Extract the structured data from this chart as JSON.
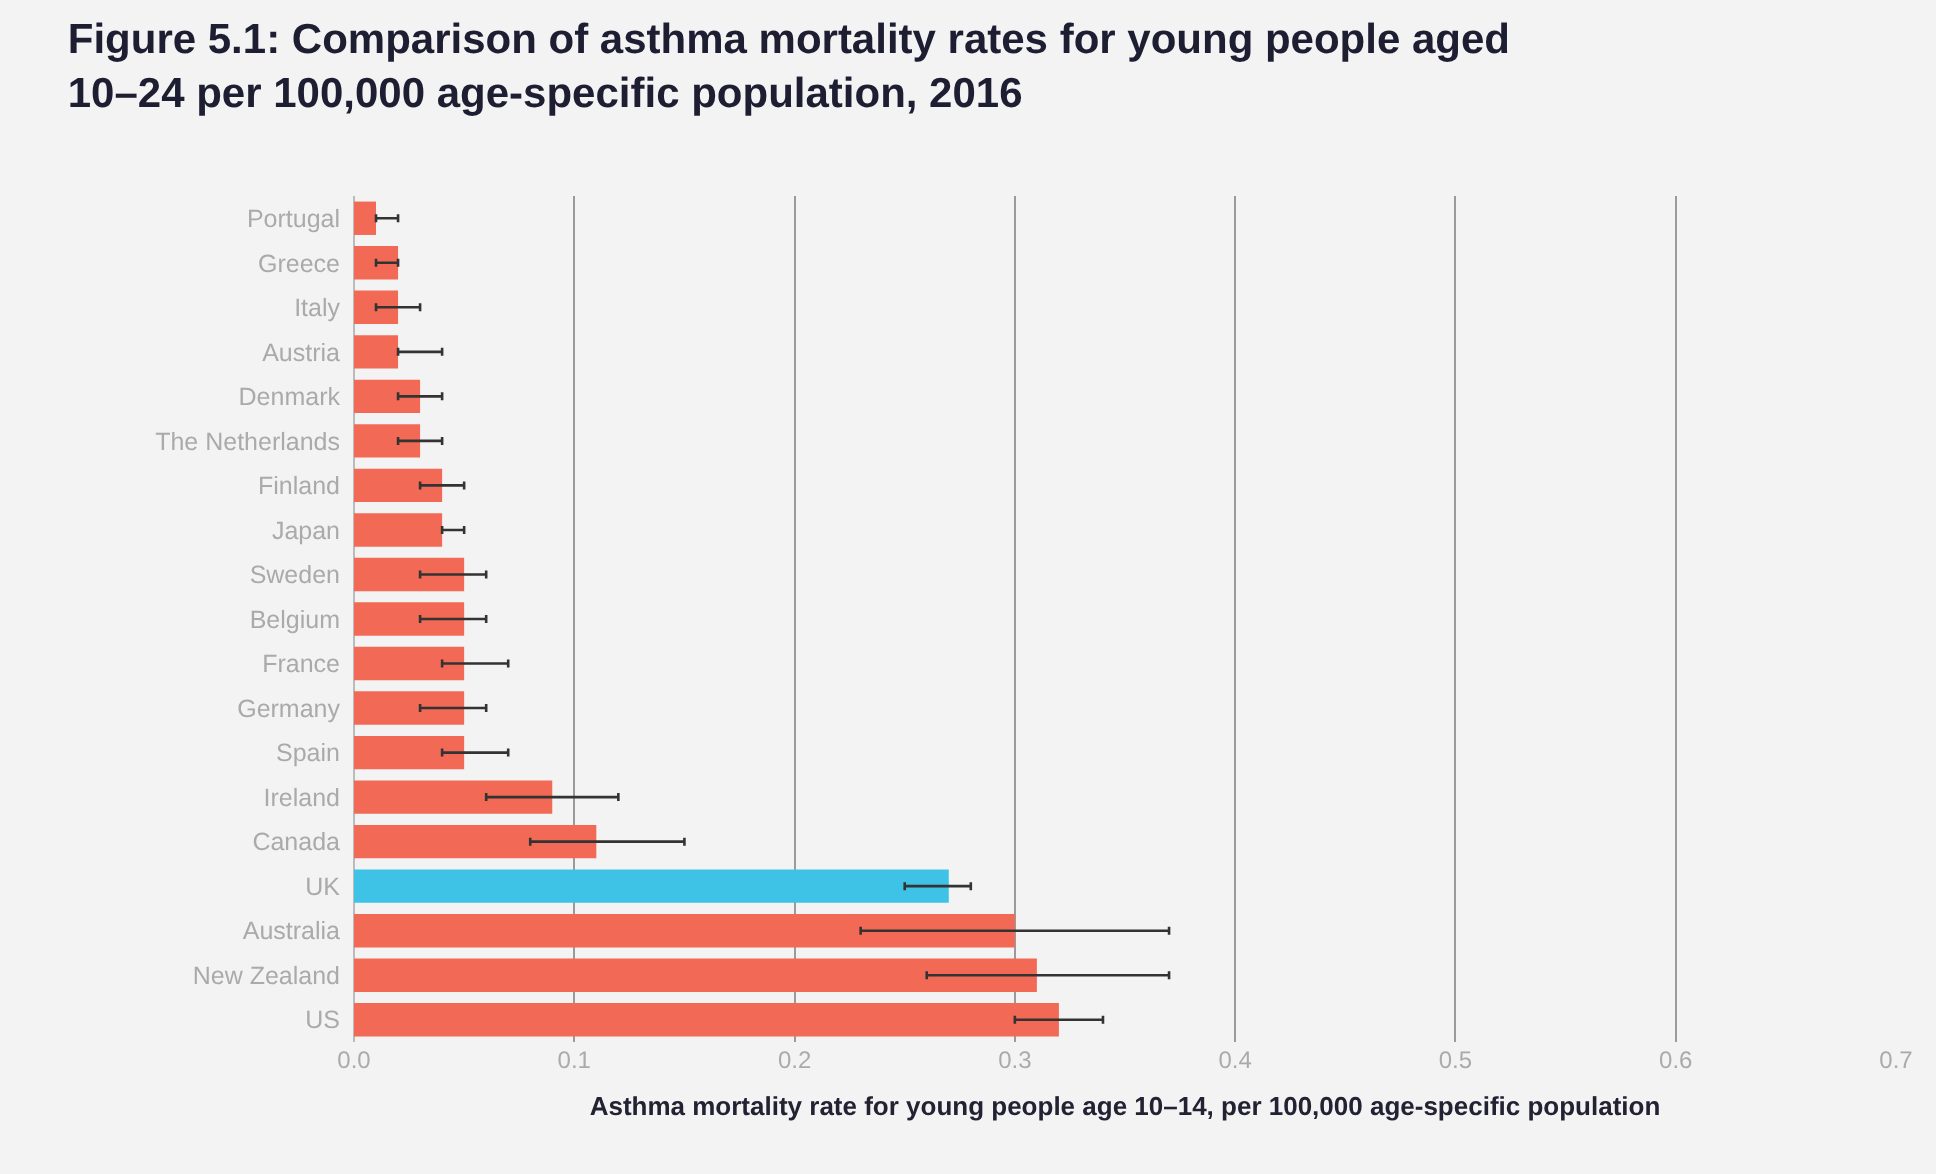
{
  "chart_data": {
    "type": "bar",
    "orientation": "horizontal",
    "title": "Figure 5.1: Comparison of asthma mortality rates for young people aged 10–24 per 100,000 age-specific population, 2016",
    "xlabel": "Asthma mortality rate for young people age 10–14, per 100,000 age-specific population",
    "categories": [
      "Portugal",
      "Greece",
      "Italy",
      "Austria",
      "Denmark",
      "The Netherlands",
      "Finland",
      "Japan",
      "Sweden",
      "Belgium",
      "France",
      "Germany",
      "Spain",
      "Ireland",
      "Canada",
      "UK",
      "Australia",
      "New Zealand",
      "US"
    ],
    "values": [
      0.01,
      0.02,
      0.02,
      0.02,
      0.03,
      0.03,
      0.04,
      0.04,
      0.05,
      0.05,
      0.05,
      0.05,
      0.05,
      0.09,
      0.11,
      0.27,
      0.3,
      0.31,
      0.32
    ],
    "errors": [
      [
        0.01,
        0.02
      ],
      [
        0.01,
        0.02
      ],
      [
        0.01,
        0.03
      ],
      [
        0.02,
        0.04
      ],
      [
        0.02,
        0.04
      ],
      [
        0.02,
        0.04
      ],
      [
        0.03,
        0.05
      ],
      [
        0.04,
        0.05
      ],
      [
        0.03,
        0.06
      ],
      [
        0.03,
        0.06
      ],
      [
        0.04,
        0.07
      ],
      [
        0.03,
        0.06
      ],
      [
        0.04,
        0.07
      ],
      [
        0.06,
        0.12
      ],
      [
        0.08,
        0.15
      ],
      [
        0.25,
        0.28
      ],
      [
        0.23,
        0.37
      ],
      [
        0.26,
        0.37
      ],
      [
        0.3,
        0.34
      ]
    ],
    "colors": [
      "#f26a55",
      "#f26a55",
      "#f26a55",
      "#f26a55",
      "#f26a55",
      "#f26a55",
      "#f26a55",
      "#f26a55",
      "#f26a55",
      "#f26a55",
      "#f26a55",
      "#f26a55",
      "#f26a55",
      "#f26a55",
      "#f26a55",
      "#3ec3e6",
      "#f26a55",
      "#f26a55",
      "#f26a55"
    ],
    "xlim": [
      0,
      0.7
    ],
    "xticks": [
      {
        "value": 0,
        "label": "0.0"
      },
      0.1,
      0.2,
      0.3,
      0.4,
      0.5,
      0.6,
      0.7
    ],
    "grid": "x"
  }
}
